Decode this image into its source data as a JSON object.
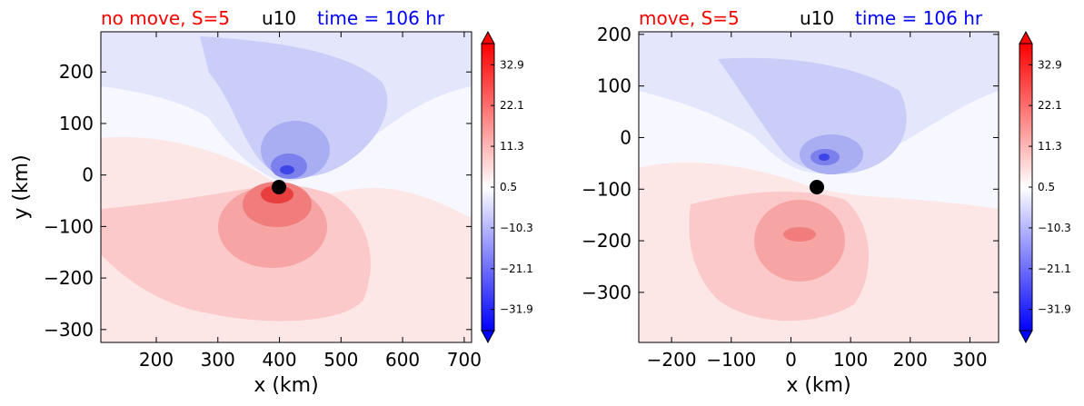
{
  "colors": {
    "red_title": "#ff0000",
    "blue_title": "#0000ff",
    "black": "#000000"
  },
  "chart_data": [
    {
      "type": "heatmap",
      "variable": "u10",
      "title_left": "no move, S=5",
      "title_mid": "u10",
      "title_right": "time = 106 hr",
      "xlabel": "x (km)",
      "ylabel": "y (km)",
      "xlim": [
        110,
        712
      ],
      "ylim": [
        -325,
        278
      ],
      "xticks": [
        "200",
        "300",
        "400",
        "500",
        "600",
        "700"
      ],
      "xtick_values": [
        200,
        300,
        400,
        500,
        600,
        700
      ],
      "yticks": [
        "200",
        "100",
        "0",
        "−100",
        "−200",
        "−300"
      ],
      "ytick_values": [
        200,
        100,
        0,
        -100,
        -200,
        -300
      ],
      "center": {
        "x": 408,
        "y": -22
      },
      "colorbar": {
        "min": -37.5,
        "max": 38.5,
        "ticks": [
          "32.9",
          "22.1",
          "11.3",
          "0.5",
          "−10.3",
          "−21.1",
          "−31.9"
        ],
        "tick_values": [
          32.9,
          22.1,
          11.3,
          0.5,
          -10.3,
          -21.1,
          -31.9
        ]
      }
    },
    {
      "type": "heatmap",
      "variable": "u10",
      "title_left": "move, S=5",
      "title_mid": "u10",
      "title_right": "time = 106 hr",
      "xlabel": "x (km)",
      "ylabel": "",
      "xlim": [
        -255,
        348
      ],
      "ylim": [
        -397,
        205
      ],
      "xticks": [
        "−200",
        "−100",
        "0",
        "100",
        "200",
        "300"
      ],
      "xtick_values": [
        -200,
        -100,
        0,
        100,
        200,
        300
      ],
      "yticks": [
        "200",
        "100",
        "0",
        "−100",
        "−200",
        "−300"
      ],
      "ytick_values": [
        200,
        100,
        0,
        -100,
        -200,
        -300
      ],
      "center": {
        "x": 48,
        "y": -93
      },
      "colorbar": {
        "min": -37.5,
        "max": 38.5,
        "ticks": [
          "32.9",
          "22.1",
          "11.3",
          "0.5",
          "−10.3",
          "−21.1",
          "−31.9"
        ],
        "tick_values": [
          32.9,
          22.1,
          11.3,
          0.5,
          -10.3,
          -21.1,
          -31.9
        ]
      }
    }
  ]
}
